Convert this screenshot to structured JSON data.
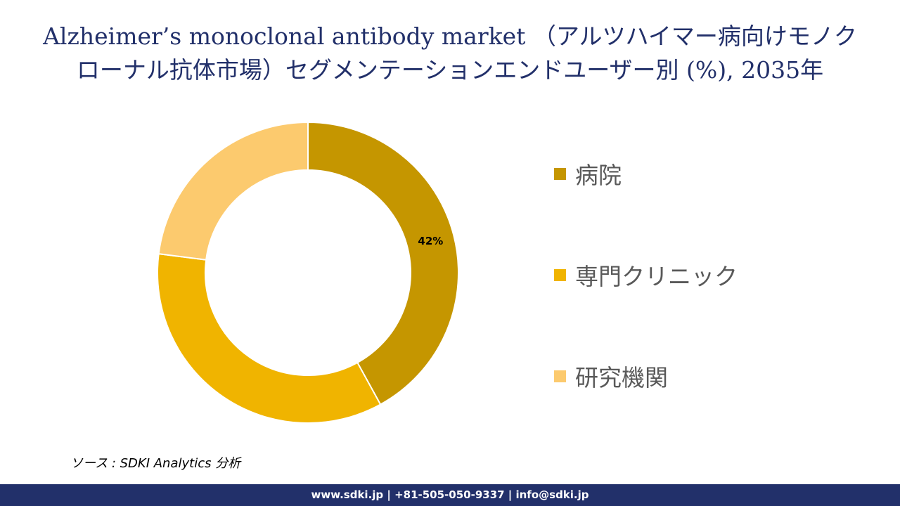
{
  "title_line1": "Alzheimer’s monoclonal antibody market （アルツハイマー病向けモノク",
  "title_line2": "ローナル抗体市場）セグメンテーションエンドユーザー別 (%), 2035年",
  "source": "ソース : SDKI Analytics 分析",
  "footer": "www.sdki.jp | +81-505-050-9337 | info@sdki.jp",
  "chart_data": {
    "type": "pie",
    "variant": "donut",
    "legend_position": "right",
    "categories": [
      "病院",
      "専門クリニック",
      "研究機関"
    ],
    "values": [
      42,
      35,
      23
    ],
    "data_labels": [
      "42%",
      "",
      ""
    ],
    "colors": [
      "#c59600",
      "#f0b400",
      "#fcca6e"
    ]
  }
}
